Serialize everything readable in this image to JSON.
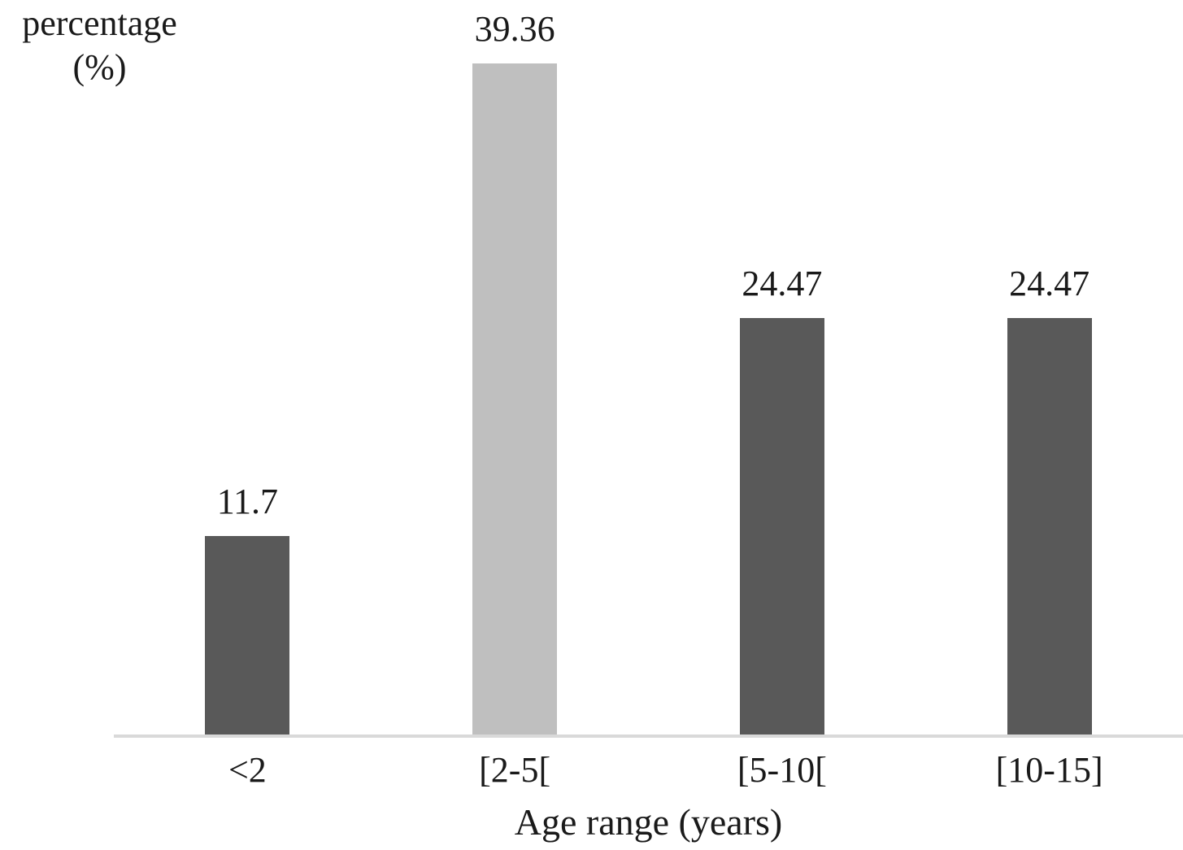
{
  "chart_data": {
    "type": "bar",
    "categories": [
      "<2",
      "[2-5[",
      "[5-10[",
      "[10-15]"
    ],
    "values": [
      11.7,
      39.36,
      24.47,
      24.47
    ],
    "value_labels": [
      "11.7",
      "39.36",
      "24.47",
      "24.47"
    ],
    "title": "",
    "xlabel": "Age range (years)",
    "ylabel": "percentage (%)",
    "ylim": [
      0,
      39.36
    ],
    "grid": false,
    "legend": null,
    "bar_colors": [
      "#595959",
      "#bfbfbf",
      "#595959",
      "#595959"
    ],
    "axis_line_color": "#d9d9d9"
  }
}
